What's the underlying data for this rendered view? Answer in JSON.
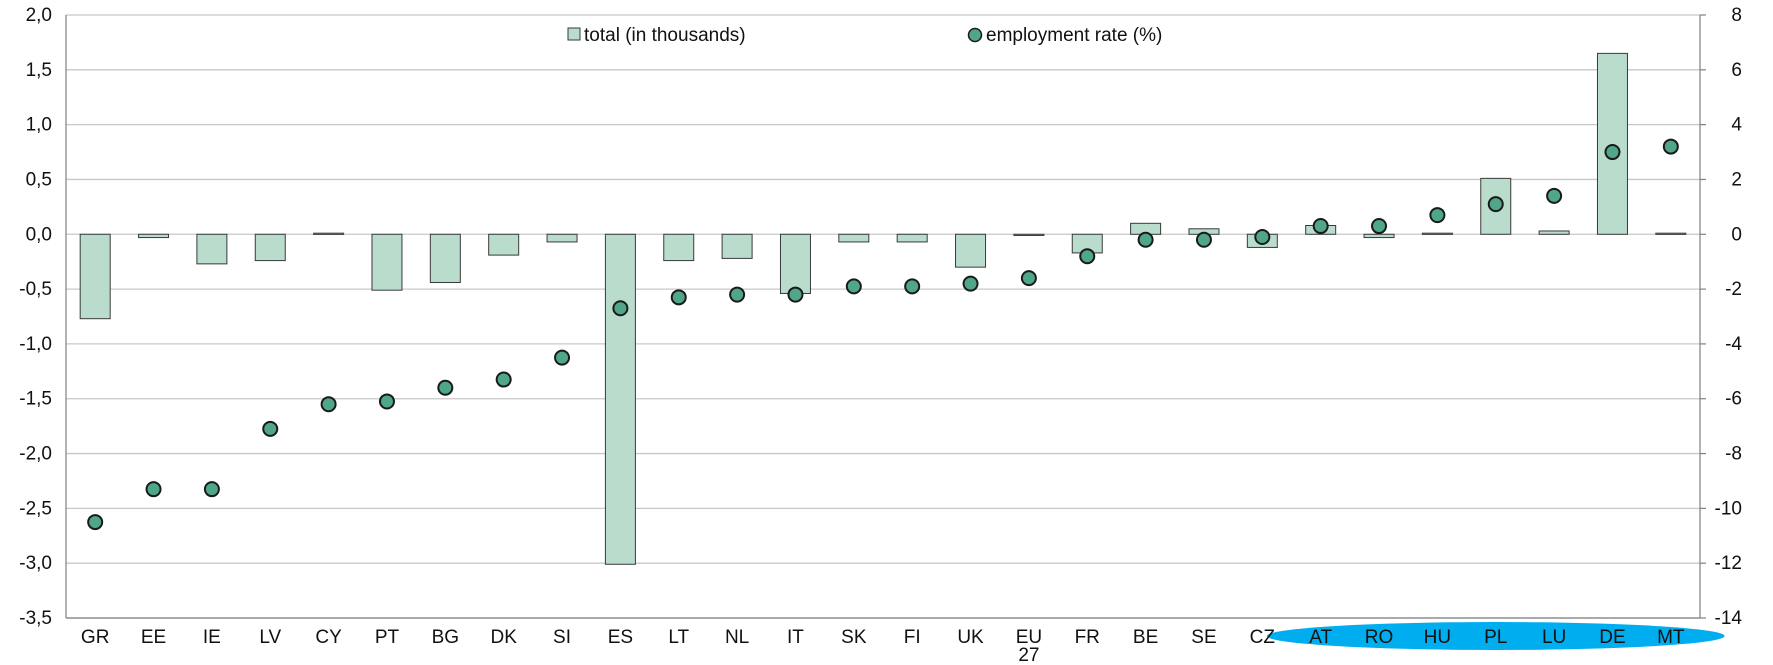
{
  "chart_data": {
    "type": "bar+scatter",
    "categories": [
      "GR",
      "EE",
      "IE",
      "LV",
      "CY",
      "PT",
      "BG",
      "DK",
      "SI",
      "ES",
      "LT",
      "NL",
      "IT",
      "SK",
      "FI",
      "UK",
      "EU 27",
      "FR",
      "BE",
      "SE",
      "CZ",
      "AT",
      "RO",
      "HU",
      "PL",
      "LU",
      "DE",
      "MT"
    ],
    "series": [
      {
        "name": "total (in thousands)",
        "type": "bar",
        "axis": "left",
        "values": [
          -0.77,
          -0.03,
          -0.27,
          -0.24,
          0.01,
          -0.51,
          -0.44,
          -0.19,
          -0.07,
          -3.01,
          -0.24,
          -0.22,
          -0.54,
          -0.07,
          -0.07,
          -0.3,
          0.0,
          -0.17,
          0.1,
          0.05,
          -0.12,
          0.08,
          -0.03,
          0.01,
          0.51,
          0.03,
          1.65,
          0.01
        ]
      },
      {
        "name": "employment rate (%)",
        "type": "scatter",
        "axis": "right",
        "values": [
          -10.5,
          -9.3,
          -9.3,
          -7.1,
          -6.2,
          -6.1,
          -5.6,
          -5.3,
          -4.5,
          -2.7,
          -2.3,
          -2.2,
          -2.2,
          -1.9,
          -1.9,
          -1.8,
          -1.6,
          -0.8,
          -0.2,
          -0.2,
          -0.1,
          0.3,
          0.3,
          0.7,
          1.1,
          1.4,
          3.0,
          3.2
        ]
      }
    ],
    "y_left": {
      "ylim": [
        -3.5,
        2.0
      ],
      "ticks": [
        "2,0",
        "1,5",
        "1,0",
        "0,5",
        "0,0",
        "-0,5",
        "-1,0",
        "-1,5",
        "-2,0",
        "-2,5",
        "-3,0",
        "-3,5"
      ]
    },
    "y_right": {
      "ylim": [
        -14,
        8
      ],
      "ticks": [
        "8",
        "6",
        "4",
        "2",
        "0",
        "-2",
        "-4",
        "-6",
        "-8",
        "-10",
        "-12",
        "-14"
      ]
    },
    "grid": true,
    "legend_position": "top-center",
    "highlight": {
      "categories": [
        "AT",
        "RO",
        "HU",
        "PL",
        "LU",
        "DE",
        "MT"
      ],
      "color": "#00aeef"
    }
  },
  "colors": {
    "bar_fill": "#b9dccd",
    "bar_stroke": "#3a3a3a",
    "dot_fill": "#4fa689",
    "dot_stroke": "#1a1a1a",
    "grid": "#c8c8c8",
    "axis": "#808080"
  }
}
